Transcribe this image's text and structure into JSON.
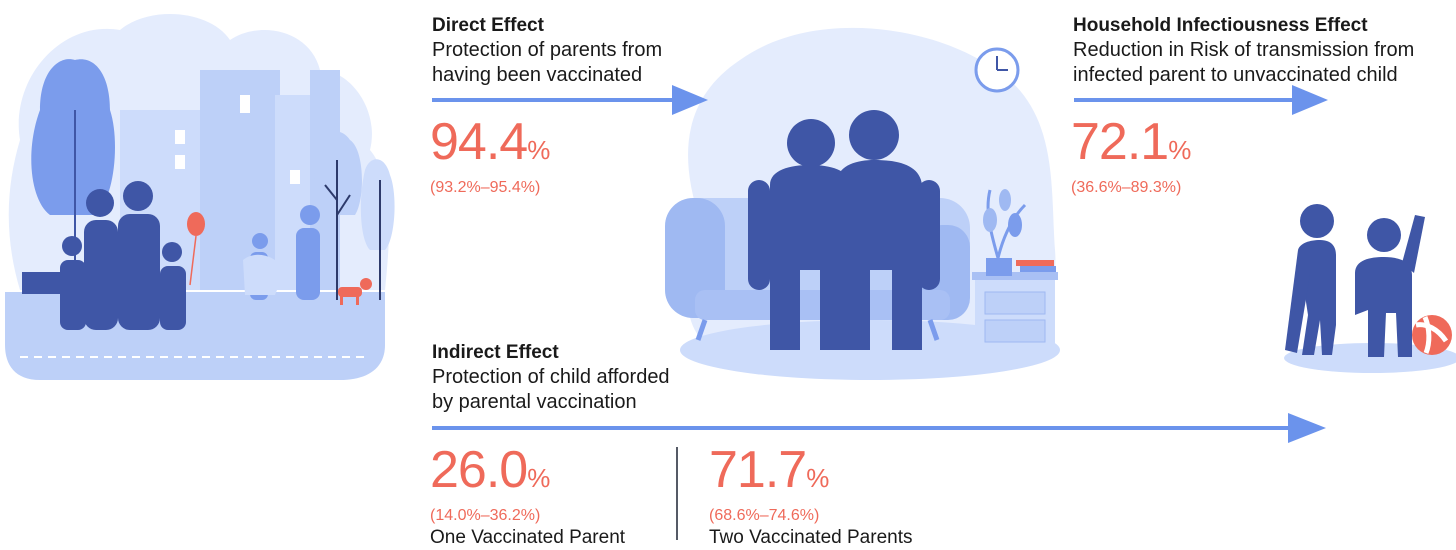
{
  "direct": {
    "title": "Direct Effect",
    "desc_line1": "Protection of parents from",
    "desc_line2": "having been vaccinated",
    "value": "94.4",
    "unit": "%",
    "ci": "(93.2%–95.4%)"
  },
  "household": {
    "title": "Household Infectiousness Effect",
    "desc_line1": "Reduction in Risk of transmission from",
    "desc_line2": "infected parent to unvaccinated child",
    "value": "72.1",
    "unit": "%",
    "ci": "(36.6%–89.3%)"
  },
  "indirect": {
    "title": "Indirect Effect",
    "desc_line1": "Protection of child afforded",
    "desc_line2": "by parental vaccination",
    "one_parent": {
      "value": "26.0",
      "unit": "%",
      "ci": "(14.0%–36.2%)",
      "label": "One Vaccinated Parent"
    },
    "two_parents": {
      "value": "71.7",
      "unit": "%",
      "ci": "(68.6%–74.6%)",
      "label": "Two Vaccinated Parents"
    }
  },
  "colors": {
    "accent_red": "#ef6a5a",
    "arrow_blue": "#6b93ec",
    "figure_navy": "#3f56a6",
    "light_blue": "#cddcfb",
    "pale_blue": "#e4ecfd"
  }
}
